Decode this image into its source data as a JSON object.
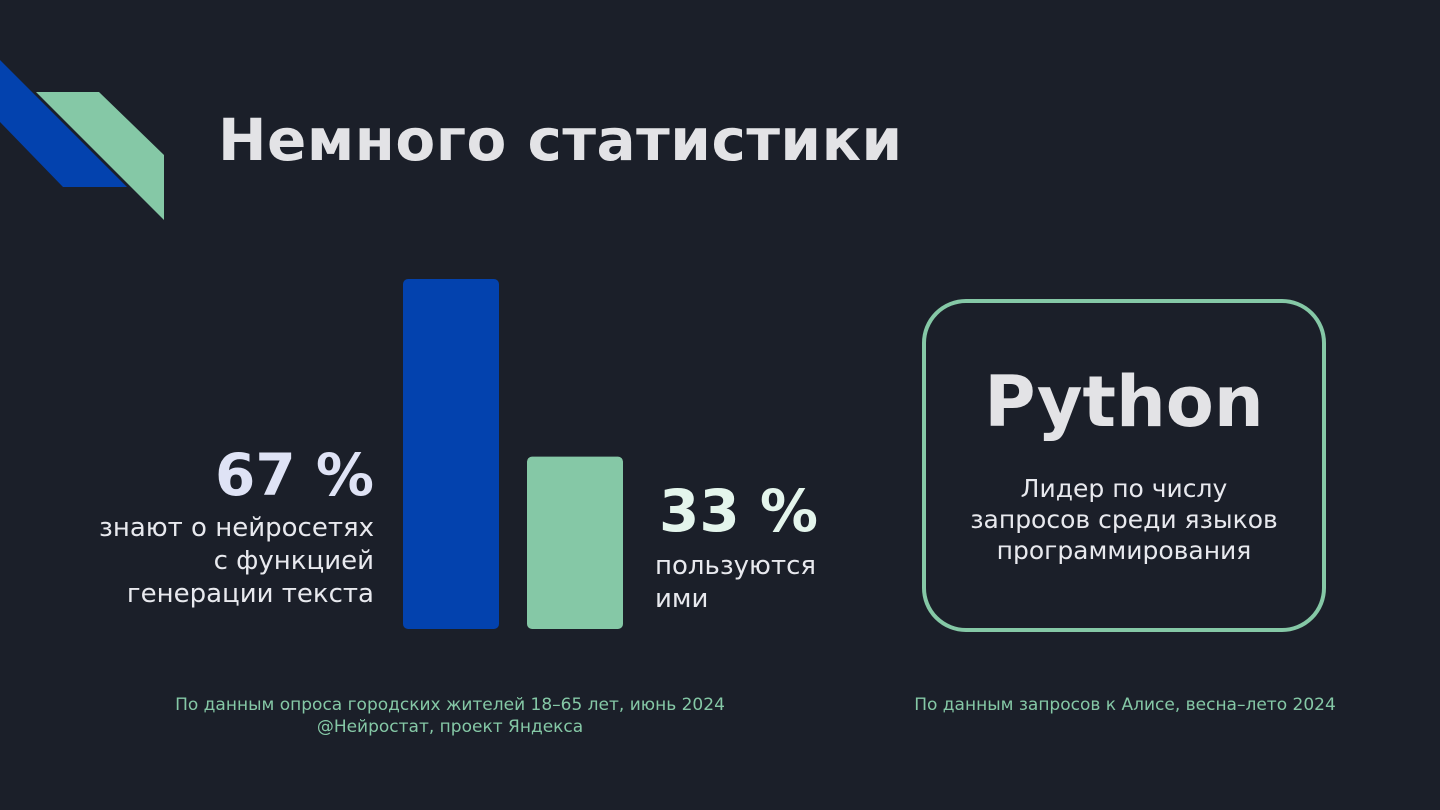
{
  "slide": {
    "title": "Немного статистики"
  },
  "colors": {
    "background": "#1b1f29",
    "blue": "#0342ae",
    "mint": "#85c8a6",
    "title_text": "#e3e3e6"
  },
  "chart_data": {
    "type": "bar",
    "categories": [
      "знают о нейросетях с функцией генерации текста",
      "пользуются ими"
    ],
    "values": [
      67,
      33
    ],
    "unit": "%",
    "colors": [
      "#0342ae",
      "#85c8a6"
    ]
  },
  "stats": {
    "left": {
      "value": "67 %",
      "label": "знают о нейросетях\nс функцией\nгенерации текста"
    },
    "right": {
      "value": "33 %",
      "label": "пользуются\nими"
    }
  },
  "python_card": {
    "title": "Python",
    "description": "Лидер по числу\nзапросов среди языков\nпрограммирования"
  },
  "sources": {
    "left": "По данным опроса городских жителей 18–65 лет, июнь 2024\n@Нейростат, проект Яндекса",
    "right": "По данным запросов к Алисе, весна–лето 2024"
  }
}
